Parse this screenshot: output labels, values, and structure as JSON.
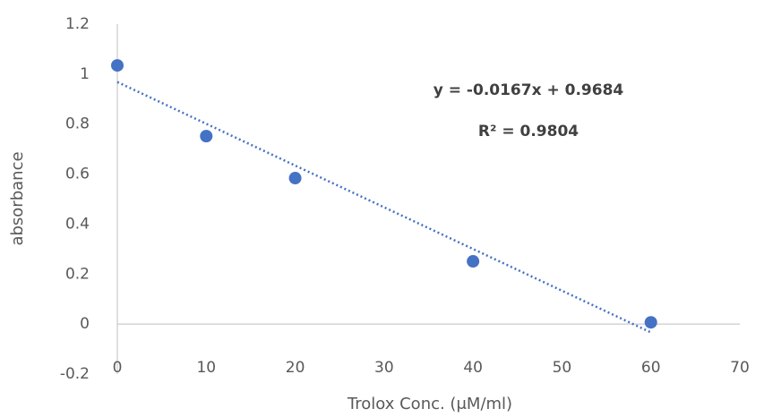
{
  "chart_data": {
    "type": "scatter",
    "x_label": "Trolox Conc. (μM/ml)",
    "y_label": "absorbance",
    "x": [
      0,
      10,
      20,
      40,
      60
    ],
    "series": [
      {
        "color": "#4472c4",
        "values": [
          1.035,
          0.752,
          0.584,
          0.251,
          0.007
        ]
      }
    ],
    "xlim": [
      0,
      70
    ],
    "xticks": [
      0,
      10,
      20,
      30,
      40,
      50,
      60,
      70
    ],
    "ylim": [
      -0.2,
      1.2
    ],
    "yticks": [
      -0.2,
      0,
      0.2,
      0.4,
      0.6,
      0.8,
      1,
      1.2
    ],
    "trendline": {
      "equation": "y = -0.0167x + 0.9684",
      "r_squared": "R² = 0.9804",
      "slope": -0.0167,
      "intercept": 0.9684,
      "color": "#4472c4"
    },
    "grid": false
  }
}
